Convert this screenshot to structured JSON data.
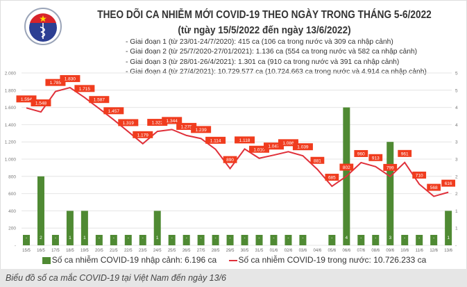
{
  "header": {
    "logo_text": "BỘ Y TẾ",
    "logo_subtext": "MINISTRY OF HEALTH",
    "title": "THEO DÕI CA NHIỄM MỚI COVID-19 THEO NGÀY TRONG THÁNG 5-6/2022",
    "subtitle": "(từ ngày 15/5/2022 đến ngày 13/6/2022)",
    "phases": [
      "- Giai đoạn 1 (từ 23/01-24/7/2020): 415 ca (106 ca trong nước và 309 ca nhập cảnh)",
      "- Giai đoạn 2 (từ 25/7/2020-27/01/2021): 1.136 ca (554 ca trong nước và 582 ca nhập cảnh)",
      "- Giai đoạn 3 (từ 28/01-26/4/2021): 1.301 ca (910 ca trong nước và 391 ca nhập cảnh)",
      "- Giai đoạn 4 (từ 27/4/2021): 10.729.577 ca (10.724.663 ca trong nước và 4.914 ca nhập cảnh)"
    ]
  },
  "chart_data": {
    "type": "bar+line",
    "categories": [
      "15/5",
      "16/5",
      "17/5",
      "18/5",
      "19/5",
      "20/5",
      "21/5",
      "22/5",
      "23/5",
      "24/5",
      "25/5",
      "26/5",
      "27/5",
      "28/5",
      "29/5",
      "30/5",
      "31/5",
      "01/6",
      "02/6",
      "03/6",
      "04/6",
      "05/6",
      "06/6",
      "07/6",
      "08/6",
      "09/6",
      "10/6",
      "11/6",
      "12/6",
      "13/6"
    ],
    "series": [
      {
        "name": "Số ca nhiễm COVID-19 nhập cảnh: 6.196 ca",
        "type": "bar",
        "axis": "right",
        "color": "#4f8a33",
        "values": [
          0,
          2,
          0,
          1,
          1,
          0,
          0,
          0,
          0,
          1,
          0,
          0,
          0,
          0,
          0,
          0,
          0,
          0,
          0,
          0,
          null,
          0,
          4,
          0,
          0,
          3,
          0,
          0,
          0,
          1
        ],
        "labels": [
          "-",
          "2",
          "-",
          "1",
          "1",
          "-",
          "-",
          "-",
          "-",
          "1",
          "-",
          "-",
          "-",
          "-",
          "-",
          "-",
          "-",
          "-",
          "-",
          "-",
          "",
          "-",
          "4",
          "-",
          "-",
          "3",
          "-",
          "-",
          "-",
          "1"
        ]
      },
      {
        "name": "Số ca nhiễm COVID-19 trong nước: 10.726.233 ca",
        "type": "line",
        "axis": "left",
        "color": "#e0303a",
        "values": [
          1594,
          1548,
          1785,
          1830,
          1715,
          1587,
          1457,
          1319,
          1179,
          1322,
          1344,
          1275,
          1239,
          1114,
          890,
          1118,
          1010,
          1047,
          1086,
          1039,
          881,
          685,
          802,
          960,
          913,
          799,
          961,
          710,
          568,
          616
        ],
        "labels": [
          "1.594",
          "1.548",
          "1.785",
          "1.830",
          "1.715",
          "1.587",
          "1.457",
          "1.319",
          "1.179",
          "1.322",
          "1.344",
          "1.275",
          "1.239",
          "1.114",
          "890",
          "1.118",
          "1.010",
          "1.047",
          "1.086",
          "1.039",
          "881",
          "685",
          "802",
          "960",
          "913",
          "799",
          "961",
          "710",
          "568",
          "616"
        ]
      }
    ],
    "y_left": {
      "range": [
        0,
        2000
      ],
      "ticks": [
        "-",
        "200",
        "400",
        "600",
        "800",
        "1.000",
        "1.200",
        "1.400",
        "1.600",
        "1.800",
        "2.000"
      ]
    },
    "y_right": {
      "range": [
        0,
        5
      ],
      "ticks": [
        "-",
        "1",
        "1",
        "2",
        "2",
        "3",
        "3",
        "4",
        "4",
        "5",
        "5"
      ]
    },
    "grid": true,
    "legend": "bottom",
    "label_box_color": "#f03c1e"
  },
  "caption": "Biểu đồ số ca mắc COVID-19 tại Việt Nam đến ngày 13/6"
}
